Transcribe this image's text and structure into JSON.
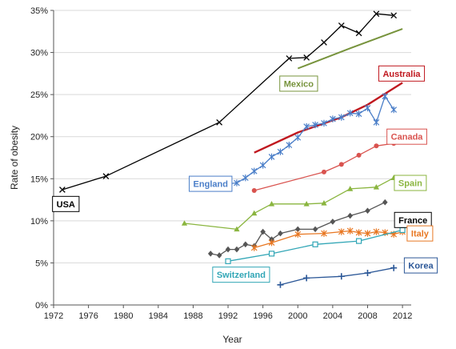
{
  "chart_data": {
    "type": "line",
    "xlabel": "Year",
    "ylabel": "Rate of obesity",
    "xlim": [
      1972,
      2013
    ],
    "ylim": [
      0,
      35
    ],
    "x_ticks": [
      "1972",
      "1976",
      "1980",
      "1984",
      "1988",
      "1992",
      "1996",
      "2000",
      "2004",
      "2008",
      "2012"
    ],
    "y_ticks": [
      "0%",
      "5%",
      "10%",
      "15%",
      "20%",
      "25%",
      "30%",
      "35%"
    ],
    "series": [
      {
        "name": "USA",
        "color": "#000000",
        "marker": "x",
        "line_width": 1.3,
        "x": [
          1973,
          1978,
          1991,
          1999,
          2001,
          2003,
          2005,
          2007,
          2009,
          2011
        ],
        "y": [
          13.7,
          15.3,
          21.7,
          29.3,
          29.4,
          31.2,
          33.2,
          32.3,
          34.6,
          34.4
        ],
        "label": {
          "year": 1973.4,
          "value": 12.0,
          "box_border": "#000000",
          "text_color": "#000000"
        }
      },
      {
        "name": "Mexico",
        "color": "#77933c",
        "marker": "none",
        "line_width": 2,
        "x": [
          2000,
          2006,
          2012
        ],
        "y": [
          28.1,
          30.5,
          32.8
        ],
        "label": {
          "year": 2000.1,
          "value": 26.3,
          "box_border": "#77933c",
          "text_color": "#77933c"
        }
      },
      {
        "name": "Australia",
        "color": "#c0181f",
        "marker": "none",
        "line_width": 2.4,
        "x": [
          1995,
          2000,
          2005,
          2008,
          2012
        ],
        "y": [
          18.1,
          20.5,
          22.3,
          23.8,
          26.4
        ],
        "label": {
          "year": 2011.9,
          "value": 27.5,
          "box_border": "#c0181f",
          "text_color": "#c0181f"
        }
      },
      {
        "name": "England",
        "color": "#4a7ec8",
        "marker": "star",
        "line_width": 1.3,
        "x": [
          1991,
          1992,
          1993,
          1994,
          1995,
          1996,
          1997,
          1998,
          1999,
          2000,
          2001,
          2002,
          2003,
          2004,
          2005,
          2006,
          2007,
          2008,
          2009,
          2010,
          2011
        ],
        "y": [
          14.3,
          14.4,
          14.5,
          15.1,
          15.9,
          16.6,
          17.6,
          18.2,
          19.0,
          19.9,
          21.2,
          21.4,
          21.6,
          22.1,
          22.3,
          22.8,
          22.7,
          23.4,
          21.7,
          24.8,
          23.2
        ],
        "label": {
          "year": 1990.0,
          "value": 14.4,
          "box_border": "#4a7ec8",
          "text_color": "#4a7ec8"
        }
      },
      {
        "name": "Canada",
        "color": "#d9534f",
        "marker": "circle",
        "line_width": 1.3,
        "x": [
          1995,
          2003,
          2005,
          2007,
          2009,
          2011
        ],
        "y": [
          13.6,
          15.8,
          16.7,
          17.8,
          18.9,
          19.2
        ],
        "label": {
          "year": 2012.5,
          "value": 20.0,
          "box_border": "#d9534f",
          "text_color": "#d9534f"
        }
      },
      {
        "name": "Spain",
        "color": "#8ab53f",
        "marker": "triangle",
        "line_width": 1.3,
        "x": [
          1987,
          1993,
          1995,
          1997,
          2001,
          2003,
          2006,
          2009,
          2011
        ],
        "y": [
          9.7,
          9.0,
          10.9,
          12.0,
          12.0,
          12.1,
          13.8,
          14.0,
          15.1
        ],
        "label": {
          "year": 2012.9,
          "value": 14.5,
          "box_border": "#8ab53f",
          "text_color": "#8ab53f"
        }
      },
      {
        "name": "France",
        "color": "#555555",
        "marker": "diamond",
        "line_width": 1.3,
        "x": [
          1990,
          1991,
          1992,
          1993,
          1994,
          1995,
          1996,
          1997,
          1998,
          2000,
          2002,
          2004,
          2006,
          2008,
          2010
        ],
        "y": [
          6.1,
          5.9,
          6.6,
          6.6,
          7.2,
          7.0,
          8.7,
          7.8,
          8.5,
          9.0,
          9.0,
          9.9,
          10.6,
          11.2,
          12.2
        ],
        "label": {
          "year": 2013.2,
          "value": 10.1,
          "box_border": "#000000",
          "text_color": "#000000"
        }
      },
      {
        "name": "Italy",
        "color": "#e87722",
        "marker": "star",
        "line_width": 1.3,
        "x": [
          1995,
          1997,
          2000,
          2003,
          2005,
          2006,
          2007,
          2008,
          2009,
          2010,
          2011,
          2012
        ],
        "y": [
          6.8,
          7.4,
          8.4,
          8.5,
          8.7,
          8.8,
          8.6,
          8.5,
          8.7,
          8.6,
          8.4,
          8.7
        ],
        "label": {
          "year": 2014.0,
          "value": 8.5,
          "box_border": "#e87722",
          "text_color": "#e87722"
        }
      },
      {
        "name": "Switzerland",
        "color": "#31a6b6",
        "marker": "square",
        "line_width": 1.3,
        "x": [
          1992,
          1997,
          2002,
          2007,
          2012
        ],
        "y": [
          5.2,
          6.1,
          7.2,
          7.6,
          8.9
        ],
        "label": {
          "year": 1993.5,
          "value": 3.6,
          "box_border": "#31a6b6",
          "text_color": "#31a6b6"
        }
      },
      {
        "name": "Korea",
        "color": "#2b5797",
        "marker": "plus",
        "line_width": 1.3,
        "x": [
          1998,
          2001,
          2005,
          2008,
          2011
        ],
        "y": [
          2.4,
          3.2,
          3.4,
          3.8,
          4.4
        ],
        "label": {
          "year": 2014.1,
          "value": 4.7,
          "box_border": "#2b5797",
          "text_color": "#2b5797"
        }
      }
    ]
  }
}
